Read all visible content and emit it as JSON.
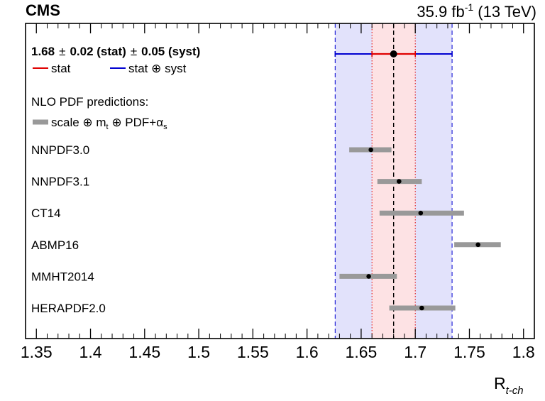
{
  "header": {
    "experiment": "CMS",
    "lumi": "35.9 fb",
    "lumi_exp": "-1",
    "energy": " (13 TeV)"
  },
  "measurement": {
    "value_text": "1.68",
    "pm1": "±",
    "stat_text": "0.02 (stat)",
    "pm2": "±",
    "syst_text": "0.05 (syst)",
    "legend_stat": "stat",
    "legend_total": "stat ⊕ syst"
  },
  "predictions_title": "NLO PDF predictions:",
  "uncertainty_legend": {
    "prefix": "scale ⊕ m",
    "m_sub": "t",
    "middle": " ⊕ PDF+α",
    "alpha_sub": "s"
  },
  "xaxis": {
    "label_main": "R",
    "label_sub": "t-ch"
  },
  "chart_data": {
    "type": "scatter",
    "xlim": [
      1.34,
      1.81
    ],
    "xticks": [
      1.35,
      1.4,
      1.45,
      1.5,
      1.55,
      1.6,
      1.65,
      1.7,
      1.75,
      1.8
    ],
    "xtick_labels": [
      "1.35",
      "1.4",
      "1.45",
      "1.5",
      "1.55",
      "1.6",
      "1.65",
      "1.7",
      "1.75",
      "1.8"
    ],
    "measurement": {
      "value": 1.68,
      "stat": 0.02,
      "total_low": 1.626,
      "total_high": 1.734
    },
    "predictions": [
      {
        "name": "NNPDF3.0",
        "value": 1.659,
        "low": 1.639,
        "high": 1.678
      },
      {
        "name": "NNPDF3.1",
        "value": 1.685,
        "low": 1.665,
        "high": 1.706
      },
      {
        "name": "CT14",
        "value": 1.705,
        "low": 1.667,
        "high": 1.745
      },
      {
        "name": "ABMP16",
        "value": 1.758,
        "low": 1.736,
        "high": 1.779
      },
      {
        "name": "MMHT2014",
        "value": 1.657,
        "low": 1.63,
        "high": 1.683
      },
      {
        "name": "HERAPDF2.0",
        "value": 1.706,
        "low": 1.676,
        "high": 1.737
      }
    ],
    "colors": {
      "stat": "#e00000",
      "total": "#0000d0",
      "stat_band": "#fde2e4",
      "total_band": "#e2e2fb",
      "prediction": "#999999"
    }
  }
}
